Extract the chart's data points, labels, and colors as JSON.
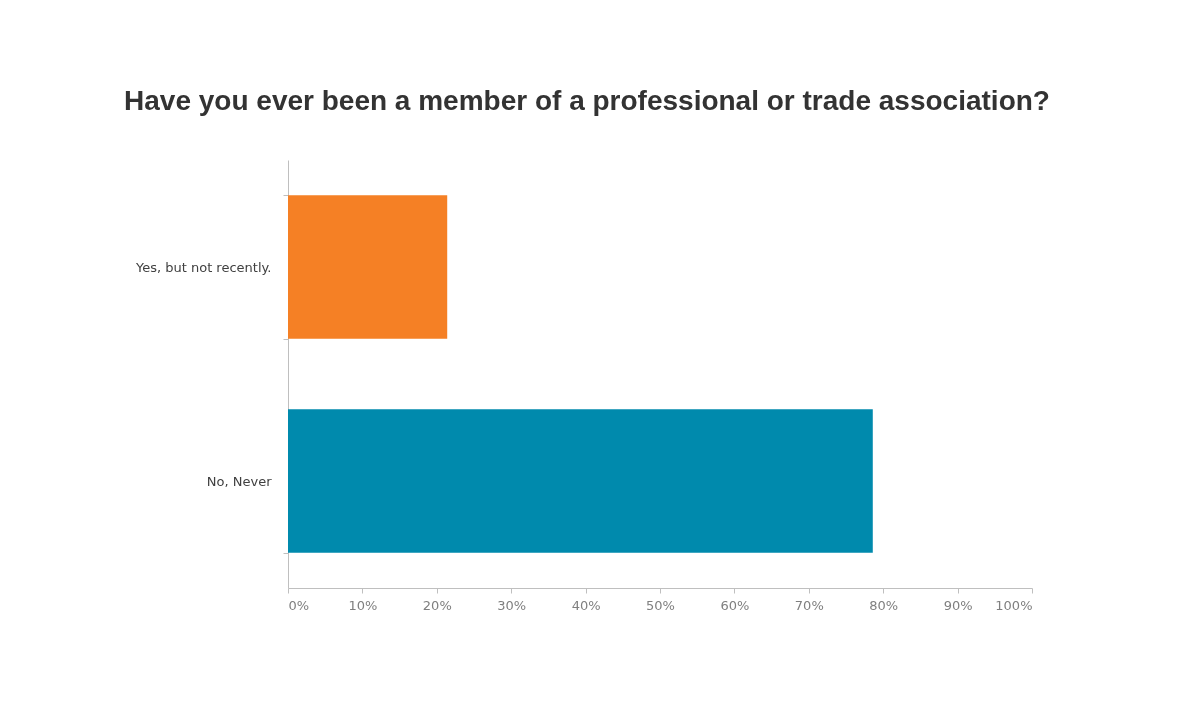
{
  "chart_data": {
    "type": "bar",
    "orientation": "horizontal",
    "title": "Have you ever been a member of a professional or trade association?",
    "categories": [
      "Yes, but not recently.",
      "No, Never"
    ],
    "values": [
      21.4,
      78.6
    ],
    "colors": [
      "#f58025",
      "#008aad"
    ],
    "xlim": [
      0,
      100
    ],
    "xticks": [
      {
        "value": 0,
        "label": "0%"
      },
      {
        "value": 10,
        "label": "10%"
      },
      {
        "value": 20,
        "label": "20%"
      },
      {
        "value": 30,
        "label": "30%"
      },
      {
        "value": 40,
        "label": "40%"
      },
      {
        "value": 50,
        "label": "50%"
      },
      {
        "value": 60,
        "label": "60%"
      },
      {
        "value": 70,
        "label": "70%"
      },
      {
        "value": 80,
        "label": "80%"
      },
      {
        "value": 90,
        "label": "90%"
      },
      {
        "value": 100,
        "label": "100%"
      }
    ],
    "grid": false,
    "legend": false
  }
}
